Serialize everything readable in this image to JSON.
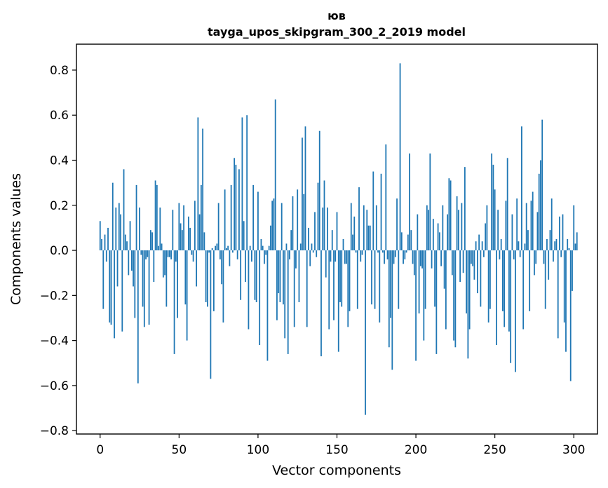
{
  "chart_data": {
    "type": "bar",
    "title": "юв",
    "subtitle": "tayga_upos_skipgram_300_2_2019 model",
    "xlabel": "Vector components",
    "ylabel": "Components values",
    "xlim": [
      -15,
      315
    ],
    "ylim": [
      -0.815,
      0.915
    ],
    "xticks": [
      0,
      50,
      100,
      150,
      200,
      250,
      300
    ],
    "yticks": [
      -0.8,
      -0.6,
      -0.4,
      -0.2,
      0.0,
      0.2,
      0.4,
      0.6,
      0.8
    ],
    "ytick_labels": [
      "−0.8",
      "−0.6",
      "−0.4",
      "−0.2",
      "0.0",
      "0.2",
      "0.4",
      "0.6",
      "0.8"
    ],
    "grid": false,
    "bar_color": "#1f77b4",
    "values": [
      0.13,
      0.05,
      -0.26,
      0.07,
      -0.05,
      0.1,
      -0.32,
      -0.33,
      0.3,
      -0.39,
      0.19,
      -0.16,
      0.21,
      0.16,
      -0.36,
      0.36,
      0.07,
      0.04,
      -0.11,
      0.13,
      -0.09,
      -0.16,
      -0.3,
      0.29,
      -0.59,
      0.19,
      -0.02,
      -0.25,
      -0.34,
      -0.04,
      -0.03,
      -0.33,
      0.09,
      0.08,
      -0.14,
      0.31,
      0.29,
      0.02,
      0.19,
      0.03,
      -0.12,
      -0.11,
      -0.25,
      -0.03,
      -0.03,
      -0.04,
      0.18,
      -0.46,
      -0.05,
      -0.3,
      0.21,
      0.12,
      0.09,
      0.2,
      -0.24,
      -0.4,
      0.15,
      0.1,
      -0.02,
      -0.05,
      0.22,
      -0.16,
      0.59,
      0.16,
      0.29,
      0.54,
      0.08,
      -0.23,
      -0.25,
      -0.01,
      -0.57,
      0.01,
      -0.27,
      0.02,
      0.03,
      0.21,
      -0.04,
      -0.15,
      -0.32,
      0.27,
      0.01,
      0.02,
      -0.07,
      0.29,
      -0.01,
      0.41,
      0.38,
      -0.04,
      0.36,
      -0.22,
      0.59,
      0.13,
      -0.14,
      0.6,
      -0.35,
      0.02,
      -0.05,
      0.29,
      -0.22,
      -0.23,
      0.26,
      -0.42,
      0.05,
      0.02,
      -0.06,
      -0.02,
      -0.49,
      0.02,
      0.11,
      0.22,
      0.23,
      0.67,
      -0.31,
      -0.19,
      -0.23,
      0.21,
      -0.24,
      -0.39,
      0.03,
      -0.46,
      -0.04,
      0.09,
      0.24,
      -0.34,
      -0.08,
      0.27,
      -0.23,
      0.03,
      0.5,
      0.25,
      0.55,
      -0.34,
      0.1,
      -0.07,
      0.03,
      -0.01,
      0.17,
      -0.03,
      0.3,
      0.53,
      -0.47,
      0.19,
      0.31,
      -0.12,
      0.19,
      -0.35,
      -0.05,
      0.09,
      -0.31,
      -0.05,
      0.17,
      -0.45,
      -0.23,
      -0.25,
      0.05,
      -0.06,
      -0.06,
      -0.34,
      -0.27,
      0.21,
      0.07,
      0.15,
      -0.01,
      -0.26,
      0.28,
      -0.05,
      -0.02,
      0.2,
      -0.73,
      0.18,
      0.11,
      0.11,
      -0.24,
      0.35,
      -0.26,
      0.2,
      -0.01,
      -0.32,
      0.34,
      -0.01,
      -0.06,
      0.47,
      -0.04,
      -0.43,
      -0.3,
      -0.53,
      -0.06,
      -0.03,
      0.23,
      -0.26,
      0.83,
      0.08,
      -0.06,
      -0.04,
      -0.01,
      0.07,
      0.43,
      0.09,
      -0.06,
      -0.11,
      -0.49,
      0.16,
      -0.28,
      -0.07,
      -0.08,
      -0.4,
      -0.26,
      0.2,
      0.18,
      0.43,
      -0.08,
      0.14,
      -0.25,
      -0.46,
      0.12,
      0.08,
      -0.07,
      0.2,
      -0.17,
      -0.35,
      0.16,
      0.32,
      0.31,
      -0.11,
      -0.4,
      -0.43,
      0.24,
      0.18,
      -0.14,
      0.21,
      -0.1,
      0.37,
      -0.28,
      -0.48,
      -0.35,
      -0.06,
      -0.07,
      -0.13,
      0.04,
      -0.19,
      0.07,
      -0.25,
      0.04,
      -0.03,
      0.12,
      0.2,
      -0.32,
      -0.26,
      0.43,
      0.38,
      0.27,
      -0.42,
      0.18,
      -0.04,
      0.05,
      -0.27,
      -0.34,
      0.22,
      0.41,
      -0.36,
      -0.5,
      0.16,
      -0.04,
      -0.54,
      0.23,
      0.04,
      -0.03,
      0.55,
      -0.35,
      0.03,
      0.21,
      0.09,
      -0.27,
      0.22,
      0.26,
      -0.11,
      -0.06,
      0.17,
      0.34,
      0.4,
      0.58,
      -0.06,
      -0.26,
      0.05,
      -0.13,
      0.09,
      0.23,
      -0.05,
      0.04,
      0.05,
      -0.39,
      0.15,
      -0.03,
      0.16,
      -0.32,
      -0.45,
      0.05,
      0.01,
      -0.58,
      -0.18,
      0.2,
      0.03,
      0.08
    ]
  }
}
